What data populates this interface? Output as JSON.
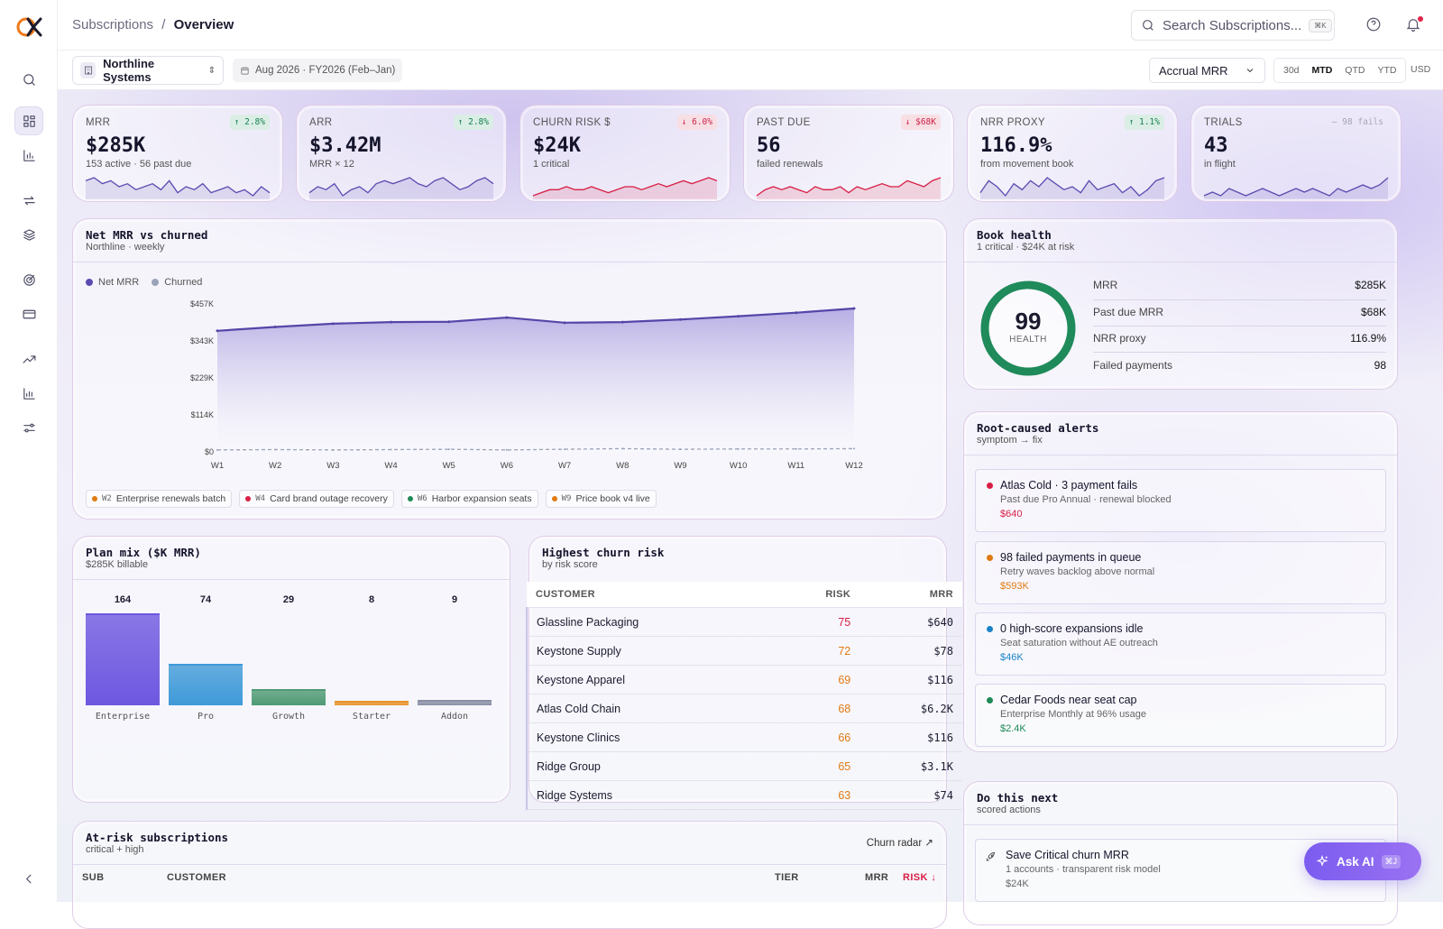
{
  "header": {
    "breadcrumb_parent": "Subscriptions",
    "breadcrumb_sep": "/",
    "breadcrumb_current": "Overview",
    "search_placeholder": "Search Subscriptions...",
    "search_shortcut": "⌘K"
  },
  "toolbar": {
    "org_name": "Northline Systems",
    "period": "Aug 2026 · FY2026 (Feb–Jan)",
    "mrr_mode": "Accrual MRR",
    "ranges": [
      "30d",
      "MTD",
      "QTD",
      "YTD"
    ],
    "active_range": "MTD",
    "currency": "USD"
  },
  "kpis": [
    {
      "label": "MRR",
      "value": "$285K",
      "sub": "153 active · 56 past due",
      "delta": "↑ 2.8%",
      "trend": "up",
      "spark": [
        8,
        9,
        7,
        8,
        6,
        7,
        5,
        6,
        7,
        5,
        8,
        4,
        6,
        5,
        7,
        4,
        5,
        6,
        4,
        5,
        3,
        6,
        4
      ]
    },
    {
      "label": "ARR",
      "value": "$3.42M",
      "sub": "MRR × 12",
      "delta": "↑ 2.8%",
      "trend": "up",
      "spark": [
        4,
        6,
        5,
        7,
        3,
        5,
        6,
        4,
        7,
        8,
        7,
        8,
        9,
        7,
        6,
        8,
        9,
        7,
        5,
        6,
        8,
        9,
        7
      ]
    },
    {
      "label": "CHURN RISK $",
      "value": "$24K",
      "sub": "1 critical",
      "delta": "↓ 6.0%",
      "trend": "down",
      "spark": [
        3,
        4,
        5,
        5,
        6,
        5,
        5,
        6,
        5,
        4,
        5,
        6,
        6,
        5,
        6,
        7,
        6,
        7,
        8,
        7,
        8,
        9,
        8
      ]
    },
    {
      "label": "PAST DUE",
      "value": "56",
      "sub": "failed renewals",
      "delta": "↓ $68K",
      "trend": "down",
      "spark": [
        3,
        5,
        6,
        5,
        6,
        5,
        4,
        6,
        5,
        5,
        6,
        4,
        6,
        5,
        6,
        7,
        6,
        6,
        8,
        7,
        6,
        8,
        9
      ]
    },
    {
      "label": "NRR PROXY",
      "value": "116.9%",
      "sub": "from movement book",
      "delta": "↑ 1.1%",
      "trend": "up",
      "spark": [
        4,
        8,
        6,
        3,
        7,
        5,
        8,
        6,
        9,
        7,
        5,
        6,
        4,
        8,
        5,
        6,
        7,
        4,
        6,
        3,
        5,
        8,
        9
      ]
    },
    {
      "label": "TRIALS",
      "value": "43",
      "sub": "in flight",
      "delta": "— 98 fails",
      "trend": "neutral",
      "spark": [
        4,
        5,
        4,
        6,
        5,
        4,
        5,
        6,
        5,
        4,
        5,
        6,
        5,
        6,
        5,
        4,
        6,
        5,
        6,
        7,
        6,
        7,
        9
      ]
    }
  ],
  "net_mrr": {
    "title": "Net MRR vs churned",
    "subtitle": "Northline · weekly",
    "legend": [
      {
        "name": "Net MRR",
        "color": "#5b4bb0"
      },
      {
        "name": "Churned",
        "color": "#9aa3b8"
      }
    ],
    "annotations": [
      {
        "week": "W2",
        "label": "Enterprise renewals batch",
        "color": "#e07a12"
      },
      {
        "week": "W4",
        "label": "Card brand outage recovery",
        "color": "#d81e45"
      },
      {
        "week": "W6",
        "label": "Harbor expansion seats",
        "color": "#1e8a55"
      },
      {
        "week": "W9",
        "label": "Price book v4 live",
        "color": "#e07a12"
      }
    ]
  },
  "chart_data": {
    "type": "area",
    "categories": [
      "W1",
      "W2",
      "W3",
      "W4",
      "W5",
      "W6",
      "W7",
      "W8",
      "W9",
      "W10",
      "W11",
      "W12"
    ],
    "series": [
      {
        "name": "Net MRR",
        "values": [
          374,
          386,
          396,
          401,
          402,
          415,
          399,
          401,
          409,
          419,
          430,
          443
        ]
      },
      {
        "name": "Churned",
        "values": [
          6,
          7,
          6,
          7,
          8,
          6,
          8,
          10,
          8,
          9,
          9,
          10
        ]
      }
    ],
    "yticks": [
      "$0",
      "$114K",
      "$229K",
      "$343K",
      "$457K"
    ],
    "ylim": [
      0,
      457
    ]
  },
  "book_health": {
    "title": "Book health",
    "subtitle": "1 critical · $24K at risk",
    "score": "99",
    "score_label": "HEALTH",
    "score_value": 0.99,
    "rows": [
      {
        "label": "MRR",
        "value": "$285K"
      },
      {
        "label": "Past due MRR",
        "value": "$68K"
      },
      {
        "label": "NRR proxy",
        "value": "116.9%"
      },
      {
        "label": "Failed payments",
        "value": "98"
      }
    ]
  },
  "alerts": {
    "title": "Root-caused alerts",
    "subtitle": "symptom → fix",
    "items": [
      {
        "title": "Atlas Cold · 3 payment fails",
        "desc": "Past due Pro Annual · renewal blocked",
        "amount": "$640",
        "color": "#d81e45"
      },
      {
        "title": "98 failed payments in queue",
        "desc": "Retry waves backlog above normal",
        "amount": "$593K",
        "color": "#e07a12"
      },
      {
        "title": "0 high-score expansions idle",
        "desc": "Seat saturation without AE outreach",
        "amount": "$46K",
        "color": "#1a82c8"
      },
      {
        "title": "Cedar Foods near seat cap",
        "desc": "Enterprise Monthly at 96% usage",
        "amount": "$2.4K",
        "color": "#1e8a55"
      }
    ]
  },
  "next": {
    "title": "Do this next",
    "subtitle": "scored actions",
    "item_title": "Save Critical churn MRR",
    "item_desc": "1 accounts · transparent risk model",
    "item_amount": "$24K"
  },
  "plan_mix": {
    "title": "Plan mix ($K MRR)",
    "subtitle": "$285K billable",
    "plans": [
      {
        "name": "Enterprise",
        "value": 164,
        "color": "#6e57e0"
      },
      {
        "name": "Pro",
        "value": 74,
        "color": "#3f9ad8"
      },
      {
        "name": "Growth",
        "value": 29,
        "color": "#4e9a74"
      },
      {
        "name": "Starter",
        "value": 8,
        "color": "#e8952c"
      },
      {
        "name": "Addon",
        "value": 9,
        "color": "#8a8fa6"
      }
    ]
  },
  "churn_risk": {
    "title": "Highest churn risk",
    "subtitle": "by risk score",
    "columns": [
      "CUSTOMER",
      "RISK",
      "MRR"
    ],
    "rows": [
      {
        "customer": "Glassline Packaging",
        "risk": "75",
        "mrr": "$640"
      },
      {
        "customer": "Keystone Supply",
        "risk": "72",
        "mrr": "$78"
      },
      {
        "customer": "Keystone Apparel",
        "risk": "69",
        "mrr": "$116"
      },
      {
        "customer": "Atlas Cold Chain",
        "risk": "68",
        "mrr": "$6.2K"
      },
      {
        "customer": "Keystone Clinics",
        "risk": "66",
        "mrr": "$116"
      },
      {
        "customer": "Ridge Group",
        "risk": "65",
        "mrr": "$3.1K"
      },
      {
        "customer": "Ridge Systems",
        "risk": "63",
        "mrr": "$74"
      }
    ]
  },
  "at_risk": {
    "title": "At-risk subscriptions",
    "subtitle": "critical + high",
    "link": "Churn radar ↗",
    "columns": [
      "SUB",
      "CUSTOMER",
      "TIER",
      "MRR",
      "RISK ↓"
    ]
  },
  "ask_ai": {
    "label": "Ask AI",
    "shortcut": "⌘J"
  }
}
